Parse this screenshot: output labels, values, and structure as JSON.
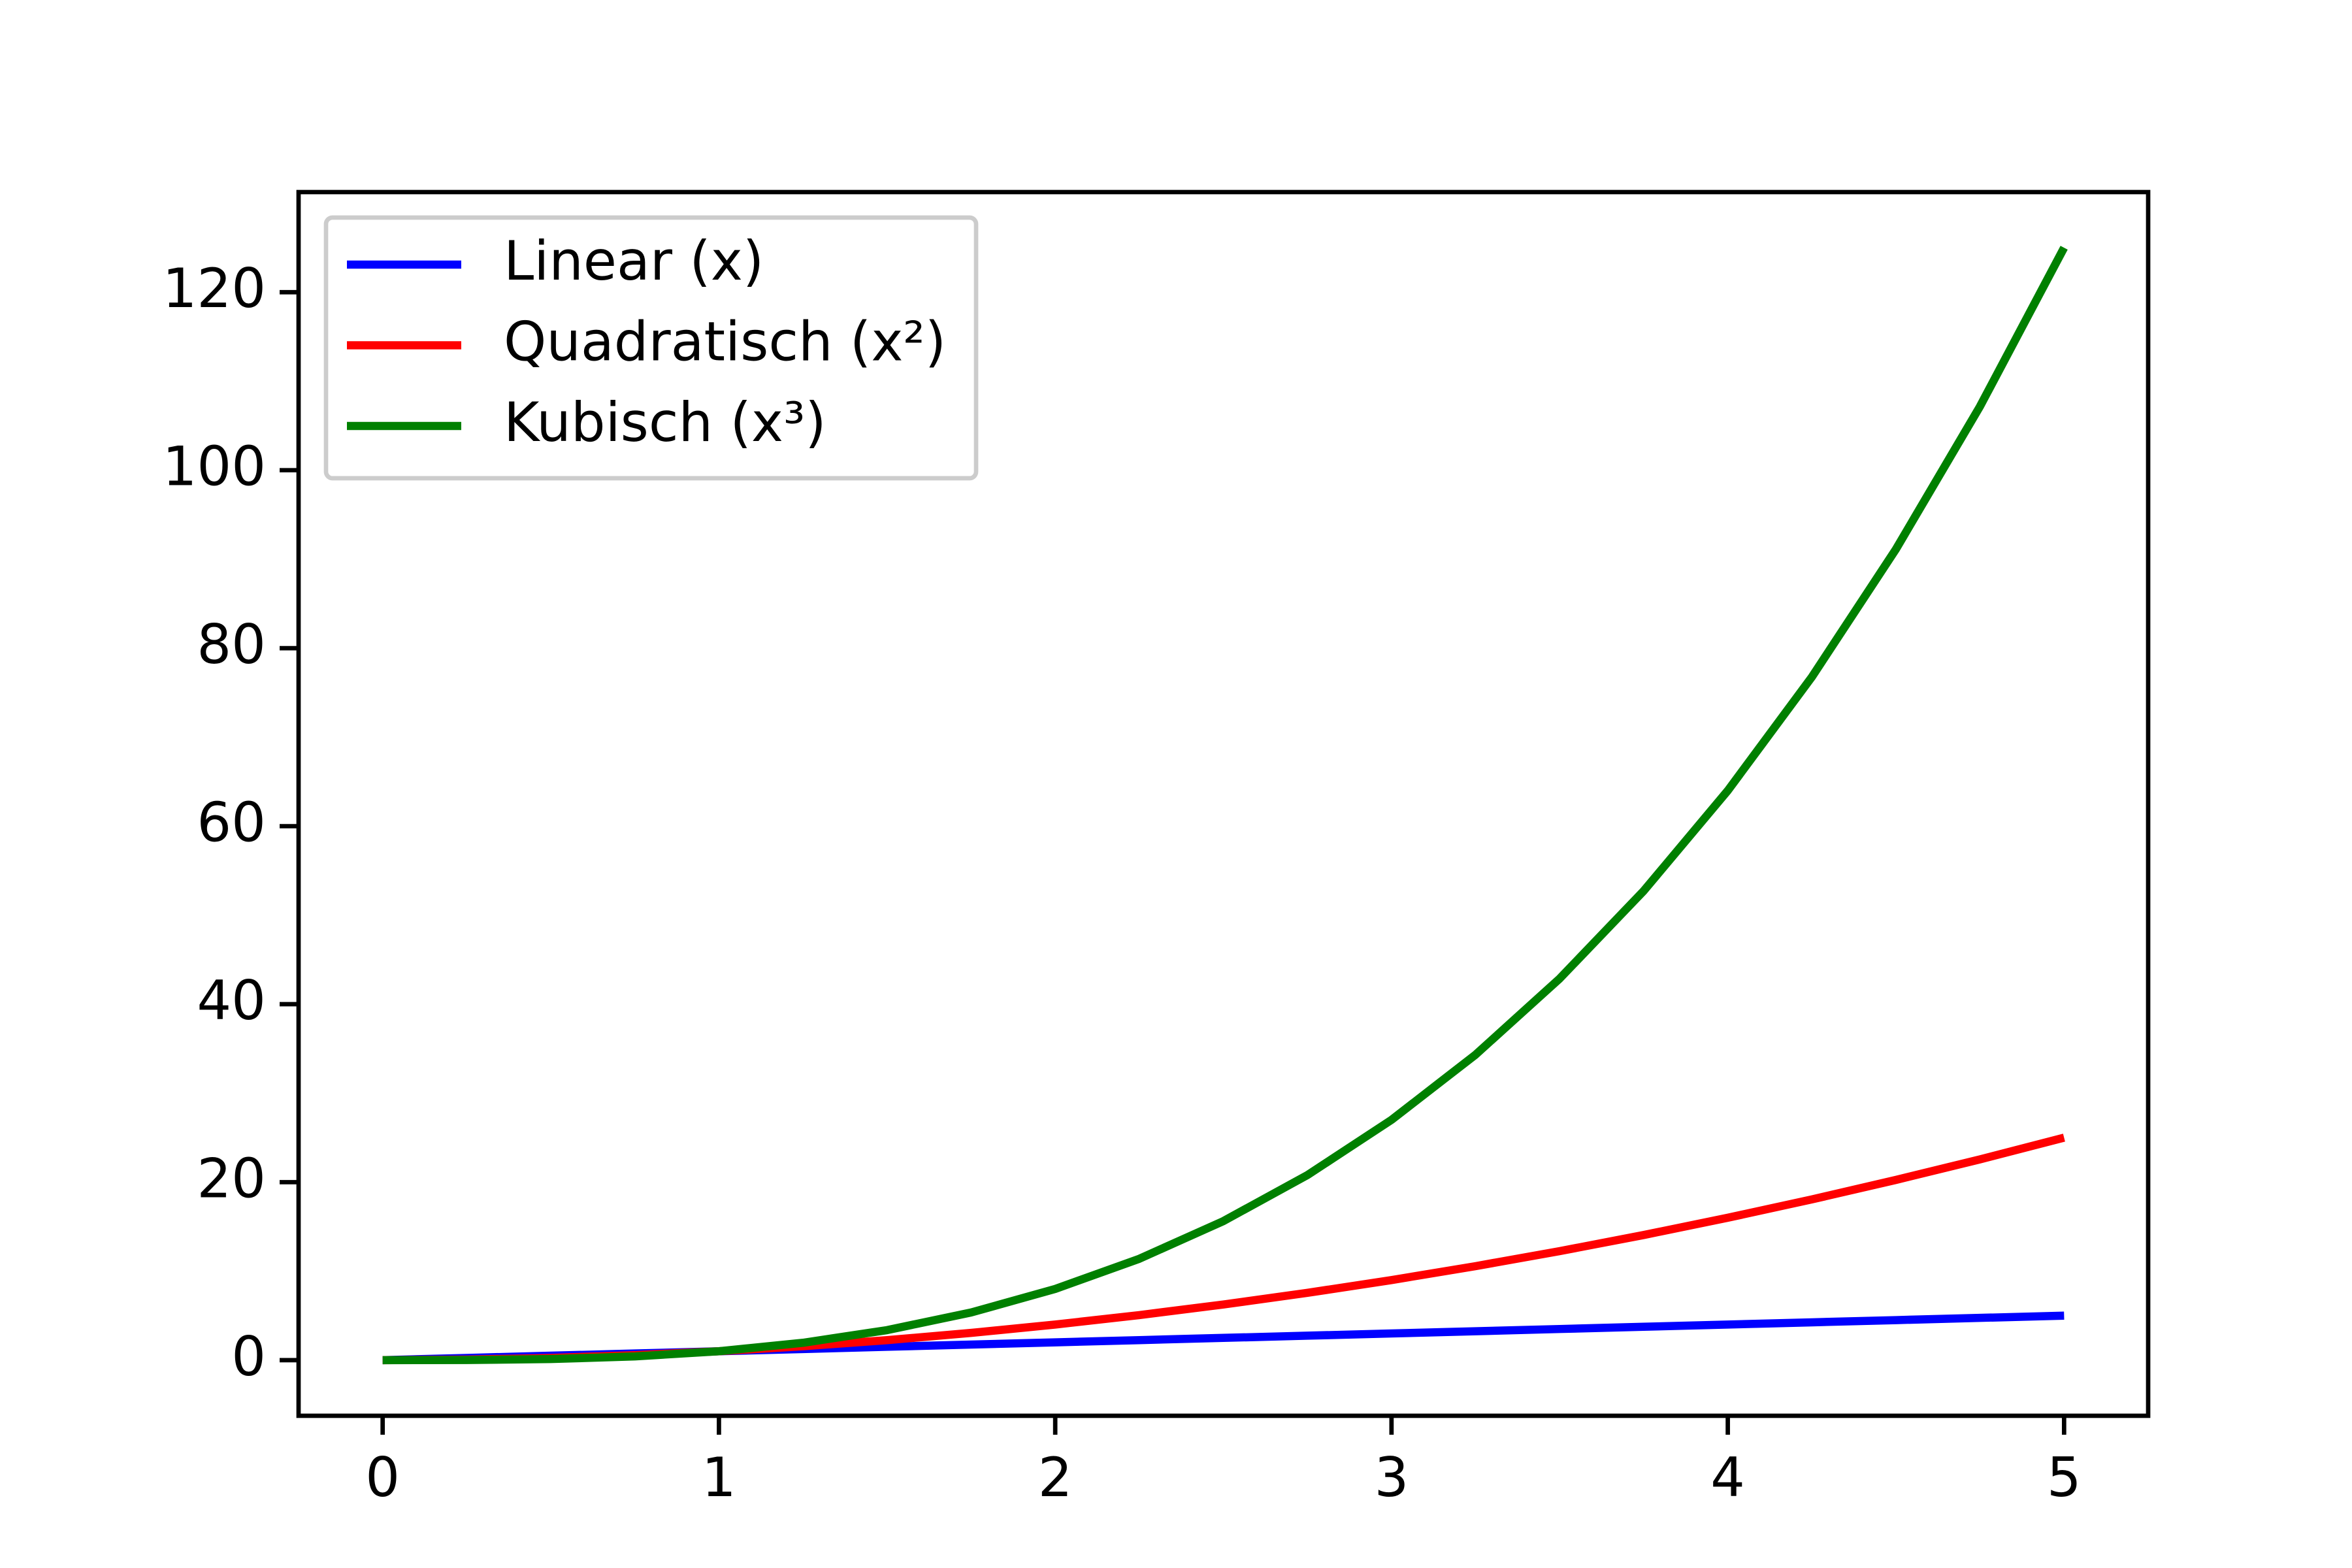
{
  "chart_data": {
    "type": "line",
    "x": [
      0,
      0.25,
      0.5,
      0.75,
      1,
      1.25,
      1.5,
      1.75,
      2,
      2.25,
      2.5,
      2.75,
      3,
      3.25,
      3.5,
      3.75,
      4,
      4.25,
      4.5,
      4.75,
      5
    ],
    "series": [
      {
        "name": "Linear (x)",
        "color": "#0000ff",
        "values": [
          0,
          0.25,
          0.5,
          0.75,
          1,
          1.25,
          1.5,
          1.75,
          2,
          2.25,
          2.5,
          2.75,
          3,
          3.25,
          3.5,
          3.75,
          4,
          4.25,
          4.5,
          4.75,
          5
        ]
      },
      {
        "name": "Quadratisch (x²)",
        "color": "#ff0000",
        "values": [
          0,
          0.0625,
          0.25,
          0.5625,
          1,
          1.5625,
          2.25,
          3.0625,
          4,
          5.0625,
          6.25,
          7.5625,
          9,
          10.5625,
          12.25,
          14.0625,
          16,
          18.0625,
          20.25,
          22.5625,
          25
        ]
      },
      {
        "name": "Kubisch (x³)",
        "color": "#008000",
        "values": [
          0,
          0.015625,
          0.125,
          0.421875,
          1,
          1.953125,
          3.375,
          5.359375,
          8,
          11.390625,
          15.625,
          20.796875,
          27,
          34.328125,
          42.875,
          52.734375,
          64,
          76.765625,
          91.125,
          107.171875,
          125
        ]
      }
    ],
    "xlim": [
      -0.25,
      5.25
    ],
    "xticks": [
      0,
      1,
      2,
      3,
      4,
      5
    ],
    "ylim": [
      -6.25,
      131.25
    ],
    "yticks": [
      0,
      20,
      40,
      60,
      80,
      100,
      120
    ],
    "grid": false,
    "legend": "upper-left"
  }
}
